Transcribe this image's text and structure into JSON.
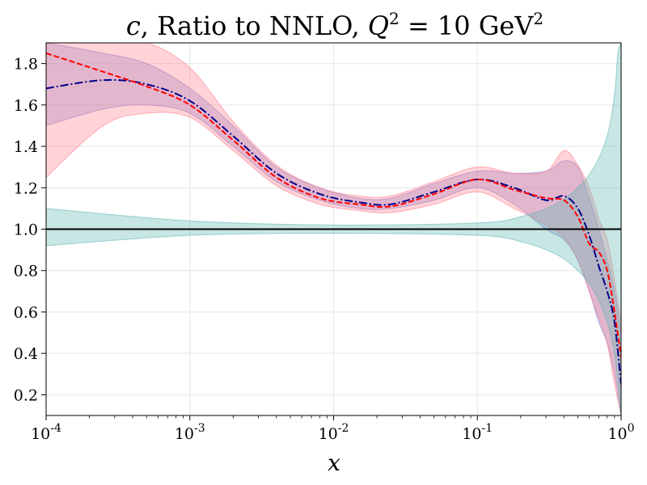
{
  "chart_data": {
    "type": "line",
    "title": "c, Ratio to NNLO, Q² = 10 GeV²",
    "title_parts": {
      "var": "c",
      "text": ", Ratio to NNLO, ",
      "q": "Q",
      "exp": "2",
      "eq": " = 10 GeV",
      "exp2": "2"
    },
    "xlabel": "x",
    "ylabel": "",
    "x_scale": "log",
    "xlim": [
      0.0001,
      1
    ],
    "ylim": [
      0.1,
      1.9
    ],
    "x_ticks": [
      {
        "base": "10",
        "exp": "-4",
        "value": 0.0001
      },
      {
        "base": "10",
        "exp": "-3",
        "value": 0.001
      },
      {
        "base": "10",
        "exp": "-2",
        "value": 0.01
      },
      {
        "base": "10",
        "exp": "-1",
        "value": 0.1
      },
      {
        "base": "10",
        "exp": "0",
        "value": 1
      }
    ],
    "y_ticks": [
      "0.2",
      "0.4",
      "0.6",
      "0.8",
      "1.0",
      "1.2",
      "1.4",
      "1.6",
      "1.8"
    ],
    "grid": true,
    "reference_line": 1.0,
    "series": [
      {
        "style": "dashdot",
        "color": "#00008b",
        "band_color": "#8080d0",
        "x": [
          0.0001,
          0.00025,
          0.0005,
          0.001,
          0.002,
          0.004,
          0.008,
          0.015,
          0.025,
          0.05,
          0.1,
          0.18,
          0.3,
          0.4,
          0.5,
          0.6,
          0.7,
          0.8,
          0.9,
          1.0
        ],
        "values": [
          1.68,
          1.72,
          1.7,
          1.62,
          1.45,
          1.27,
          1.17,
          1.13,
          1.12,
          1.18,
          1.24,
          1.2,
          1.14,
          1.16,
          1.1,
          0.97,
          0.82,
          0.7,
          0.55,
          0.25
        ],
        "upper": [
          1.9,
          1.85,
          1.8,
          1.68,
          1.5,
          1.3,
          1.2,
          1.15,
          1.15,
          1.22,
          1.28,
          1.27,
          1.28,
          1.33,
          1.3,
          1.15,
          1.0,
          0.85,
          0.7,
          0.5
        ],
        "lower": [
          1.5,
          1.58,
          1.6,
          1.56,
          1.4,
          1.23,
          1.14,
          1.1,
          1.1,
          1.14,
          1.2,
          1.12,
          1.0,
          0.95,
          0.85,
          0.7,
          0.55,
          0.45,
          0.3,
          0.1
        ]
      },
      {
        "style": "dashed",
        "color": "#ff0000",
        "band_color": "#ff8090",
        "x": [
          0.0001,
          0.00025,
          0.0005,
          0.001,
          0.002,
          0.004,
          0.008,
          0.015,
          0.025,
          0.05,
          0.1,
          0.18,
          0.3,
          0.4,
          0.5,
          0.6,
          0.7,
          0.8,
          0.9,
          1.0
        ],
        "values": [
          1.85,
          1.76,
          1.69,
          1.6,
          1.43,
          1.25,
          1.15,
          1.12,
          1.11,
          1.17,
          1.24,
          1.19,
          1.15,
          1.14,
          1.06,
          0.93,
          0.89,
          0.8,
          0.6,
          0.38
        ],
        "upper": [
          1.9,
          1.9,
          1.9,
          1.78,
          1.52,
          1.31,
          1.2,
          1.16,
          1.16,
          1.23,
          1.3,
          1.27,
          1.28,
          1.38,
          1.31,
          1.2,
          1.05,
          0.95,
          0.75,
          0.55
        ],
        "lower": [
          1.25,
          1.5,
          1.56,
          1.54,
          1.38,
          1.21,
          1.12,
          1.09,
          1.08,
          1.12,
          1.18,
          1.1,
          1.02,
          0.96,
          0.85,
          0.7,
          0.57,
          0.45,
          0.25,
          0.1
        ]
      },
      {
        "style": "solid",
        "color": "#000000",
        "band_color": "#5fb8b2",
        "x": [
          0.0001,
          0.001,
          0.01,
          0.1,
          0.2,
          0.35,
          0.5,
          0.65,
          0.8,
          0.9,
          0.95,
          1.0
        ],
        "values": [
          1.0,
          1.0,
          1.0,
          1.0,
          1.0,
          1.0,
          1.0,
          1.0,
          1.0,
          1.0,
          1.0,
          1.0
        ],
        "upper": [
          1.1,
          1.04,
          1.02,
          1.03,
          1.06,
          1.12,
          1.2,
          1.3,
          1.45,
          1.65,
          1.85,
          1.9
        ],
        "lower": [
          0.92,
          0.97,
          0.98,
          0.97,
          0.94,
          0.88,
          0.8,
          0.7,
          0.55,
          0.4,
          0.25,
          0.1
        ]
      }
    ]
  }
}
